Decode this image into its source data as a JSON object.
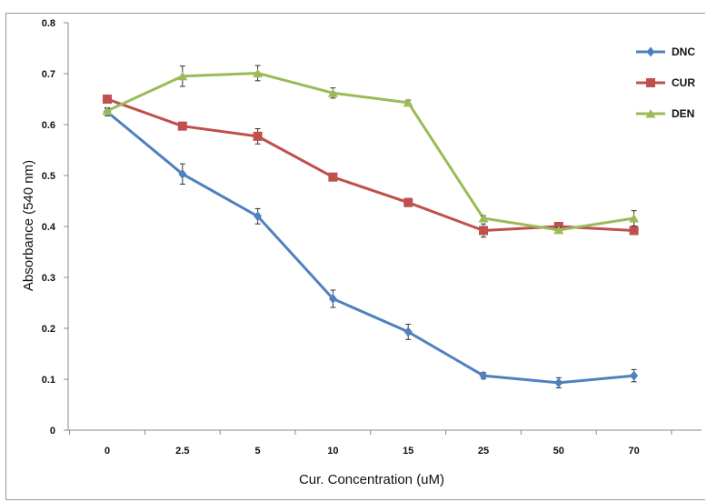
{
  "chart_data": {
    "type": "line",
    "title": "",
    "xlabel": "Cur. Concentration (uM)",
    "ylabel": "Absorbance (540 nm)",
    "categories": [
      "0",
      "2.5",
      "5",
      "10",
      "15",
      "25",
      "50",
      "70"
    ],
    "ylim": [
      0,
      0.8
    ],
    "yticks": [
      "0",
      "0.1",
      "0.2",
      "0.3",
      "0.4",
      "0.5",
      "0.6",
      "0.7",
      "0.8"
    ],
    "grid": false,
    "legend_position": "top-right",
    "series": [
      {
        "name": "DNC",
        "color": "#4f81bd",
        "marker": "diamond",
        "values": [
          0.625,
          0.503,
          0.42,
          0.258,
          0.193,
          0.107,
          0.093,
          0.107
        ],
        "errors": [
          0.008,
          0.02,
          0.015,
          0.017,
          0.015,
          0.006,
          0.01,
          0.012
        ]
      },
      {
        "name": "CUR",
        "color": "#c0504d",
        "marker": "square",
        "values": [
          0.65,
          0.597,
          0.577,
          0.497,
          0.447,
          0.392,
          0.4,
          0.392
        ],
        "errors": [
          0.006,
          0.006,
          0.015,
          0.006,
          0.008,
          0.013,
          0.006,
          0.006
        ]
      },
      {
        "name": "DEN",
        "color": "#9bbb59",
        "marker": "triangle",
        "values": [
          0.627,
          0.695,
          0.701,
          0.662,
          0.643,
          0.416,
          0.393,
          0.416
        ],
        "errors": [
          0.005,
          0.02,
          0.015,
          0.01,
          0.005,
          0.005,
          0.006,
          0.015
        ]
      }
    ]
  }
}
